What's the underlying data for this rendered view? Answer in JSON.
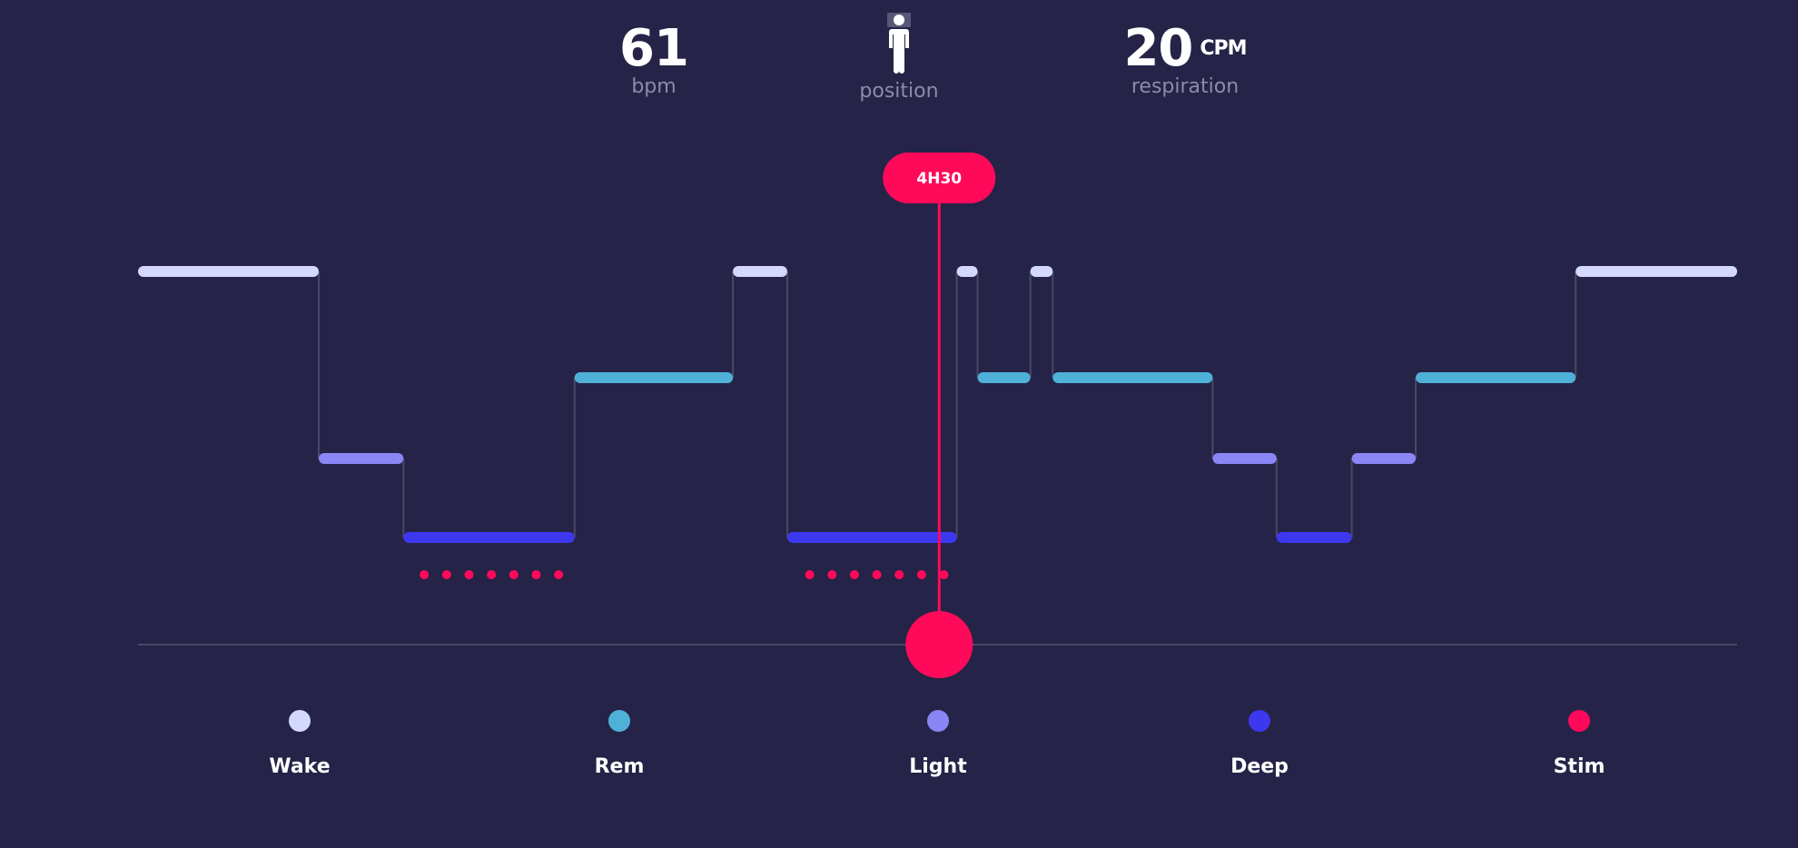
{
  "metrics": {
    "heart_rate": {
      "value": "61",
      "label": "bpm"
    },
    "position": {
      "label": "position",
      "icon": "person-standing-icon"
    },
    "respiration": {
      "value": "20",
      "unit": "CPM",
      "label": "respiration"
    }
  },
  "cursor": {
    "time_label": "4H30",
    "color": "#ff0a5a"
  },
  "colors": {
    "background": "#252347",
    "wake": "#d4d8fb",
    "rem": "#4fb1d8",
    "light": "#8a86f5",
    "deep": "#3d38f0",
    "stim": "#ff0a5a",
    "connector": "#4a4868",
    "baseline": "#4a4868"
  },
  "legend": [
    {
      "key": "wake",
      "label": "Wake"
    },
    {
      "key": "rem",
      "label": "Rem"
    },
    {
      "key": "light",
      "label": "Light"
    },
    {
      "key": "deep",
      "label": "Deep"
    },
    {
      "key": "stim",
      "label": "Stim"
    }
  ],
  "chart_data": {
    "type": "line",
    "stage_order": [
      "wake",
      "rem",
      "light",
      "deep"
    ],
    "segments": [
      {
        "stage": "wake",
        "start": 0.0,
        "end": 0.113
      },
      {
        "stage": "light",
        "start": 0.113,
        "end": 0.166
      },
      {
        "stage": "deep",
        "start": 0.166,
        "end": 0.273
      },
      {
        "stage": "rem",
        "start": 0.273,
        "end": 0.372
      },
      {
        "stage": "wake",
        "start": 0.372,
        "end": 0.406
      },
      {
        "stage": "deep",
        "start": 0.406,
        "end": 0.512
      },
      {
        "stage": "wake",
        "start": 0.512,
        "end": 0.525
      },
      {
        "stage": "rem",
        "start": 0.525,
        "end": 0.558
      },
      {
        "stage": "wake",
        "start": 0.558,
        "end": 0.572
      },
      {
        "stage": "rem",
        "start": 0.572,
        "end": 0.672
      },
      {
        "stage": "light",
        "start": 0.672,
        "end": 0.712
      },
      {
        "stage": "deep",
        "start": 0.712,
        "end": 0.759
      },
      {
        "stage": "light",
        "start": 0.759,
        "end": 0.799
      },
      {
        "stage": "rem",
        "start": 0.799,
        "end": 0.899
      },
      {
        "stage": "wake",
        "start": 0.899,
        "end": 1.0
      }
    ],
    "stim_groups": [
      {
        "count": 7,
        "start": 0.179,
        "end": 0.263
      },
      {
        "count": 7,
        "start": 0.42,
        "end": 0.504
      }
    ],
    "cursor_position": 0.501
  }
}
